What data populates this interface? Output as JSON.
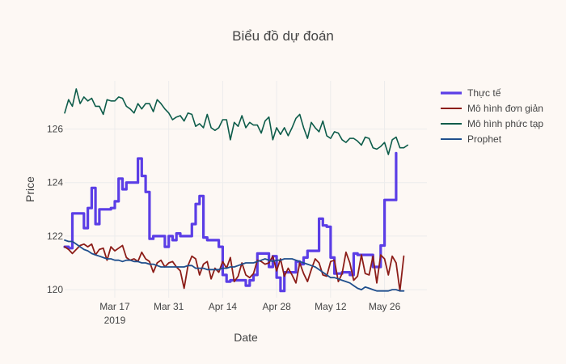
{
  "chart_data": {
    "type": "line",
    "title": "Biểu đồ dự đoán",
    "xlabel": "Date",
    "ylabel": "Price",
    "x_start": "2019-03-04",
    "x_end": "2019-06-06",
    "xlim": [
      "2019-03-04",
      "2019-06-06"
    ],
    "ylim": [
      119.7,
      127.8
    ],
    "grid": true,
    "legend_position": "right",
    "x_ticks": [
      {
        "date": "2019-03-17",
        "label": "Mar 17",
        "sublabel": "2019"
      },
      {
        "date": "2019-03-31",
        "label": "Mar 31",
        "sublabel": ""
      },
      {
        "date": "2019-04-14",
        "label": "Apr 14",
        "sublabel": ""
      },
      {
        "date": "2019-04-28",
        "label": "Apr 28",
        "sublabel": ""
      },
      {
        "date": "2019-05-12",
        "label": "May 12",
        "sublabel": ""
      },
      {
        "date": "2019-05-26",
        "label": "May 26",
        "sublabel": ""
      }
    ],
    "y_ticks": [
      120,
      122,
      124,
      126
    ],
    "series": [
      {
        "name": "Thực tế",
        "color": "#5b3ee6",
        "width": 3.2,
        "step": true,
        "values": [
          121.6,
          121.55,
          122.85,
          122.85,
          122.85,
          122.3,
          123.05,
          123.8,
          122.45,
          123,
          123,
          123,
          123.05,
          123.3,
          124.15,
          123.75,
          124,
          124,
          124,
          124.9,
          124.25,
          123.65,
          121.9,
          122,
          122,
          122,
          121.6,
          122,
          121.85,
          122.1,
          122,
          122,
          122,
          122.45,
          123.2,
          123.5,
          121.95,
          121.85,
          121.85,
          121.85,
          121.6,
          120.55,
          120.3,
          120.35,
          120.35,
          120.35,
          120.35,
          120.15,
          120.35,
          120.55,
          121.35,
          121.35,
          121.35,
          120.85,
          121.25,
          120.45,
          119.95,
          120.65,
          120.65,
          120.65,
          121.05,
          120.95,
          121.2,
          121.45,
          121.45,
          121.45,
          122.65,
          122.4,
          122.35,
          121.2,
          120.6,
          120.6,
          120.65,
          120.65,
          120.55,
          121.35,
          121.3,
          121.3,
          121.3,
          121.3,
          120.85,
          120.85,
          121.65,
          123.35,
          123.35,
          123.35,
          125.1
        ]
      },
      {
        "name": "Mô hình đơn giản",
        "color": "#8c1d18",
        "width": 1.8,
        "step": false,
        "values": [
          121.6,
          121.5,
          121.35,
          121.5,
          121.65,
          121.7,
          121.6,
          121.7,
          121.3,
          121.5,
          121.55,
          121.1,
          121.6,
          121.45,
          121.55,
          121.65,
          121.2,
          121.1,
          121.15,
          121.05,
          121.4,
          121.15,
          121.05,
          120.65,
          121,
          121.1,
          120.85,
          121,
          121.05,
          120.85,
          120.7,
          120.05,
          120.9,
          121.25,
          121.15,
          120.55,
          120.95,
          121.05,
          120.4,
          120.8,
          120.65,
          121.05,
          120.8,
          121.2,
          120.3,
          120.5,
          121,
          120.55,
          120.45,
          120.6,
          121.1,
          121.05,
          120.95,
          121,
          121.25,
          120.7,
          121.15,
          120.5,
          120.8,
          120.55,
          120.25,
          121,
          120.6,
          120.3,
          120.75,
          121.15,
          121,
          120.55,
          120.5,
          121.05,
          121.1,
          120.3,
          120.6,
          121.4,
          121,
          120.35,
          120.5,
          121.3,
          120.6,
          120.55,
          121.25,
          120.25,
          121.3,
          121.15,
          120.55,
          121.25,
          121,
          119.95,
          121.25
        ]
      },
      {
        "name": "Mô hình phức tạp",
        "color": "#0d5c4a",
        "width": 1.6,
        "step": false,
        "values": [
          126.6,
          127.1,
          126.85,
          127.5,
          126.95,
          127.2,
          127.05,
          127.15,
          126.85,
          126.85,
          126.55,
          127.1,
          127.05,
          127.05,
          127.2,
          127.15,
          126.85,
          126.75,
          126.6,
          126.95,
          126.75,
          126.95,
          126.95,
          126.65,
          127.1,
          126.95,
          126.75,
          126.6,
          126.35,
          126.45,
          126.5,
          126.3,
          126.6,
          126.55,
          126.1,
          126.2,
          126.05,
          126.55,
          126.05,
          125.95,
          126.05,
          126.35,
          126.35,
          125.6,
          126.25,
          126.1,
          126.5,
          126.05,
          126.25,
          126.15,
          126.15,
          125.85,
          126.3,
          126.45,
          125.6,
          126.05,
          125.8,
          126.05,
          125.75,
          126.05,
          126.4,
          126.55,
          126.05,
          125.65,
          126.25,
          126.05,
          125.9,
          126.3,
          125.75,
          125.65,
          125.9,
          125.85,
          125.6,
          125.5,
          125.65,
          125.65,
          125.55,
          125.4,
          125.7,
          125.65,
          125.3,
          125.25,
          125.35,
          125.5,
          125.05,
          125.6,
          125.7,
          125.3,
          125.3,
          125.4
        ]
      },
      {
        "name": "Prophet",
        "color": "#1f4e8c",
        "width": 1.8,
        "step": false,
        "values": [
          121.85,
          121.8,
          121.8,
          121.7,
          121.6,
          121.5,
          121.45,
          121.35,
          121.3,
          121.25,
          121.2,
          121.15,
          121.15,
          121.1,
          121.1,
          121.05,
          121.1,
          121.1,
          121.05,
          121.05,
          121,
          121,
          120.95,
          120.95,
          120.9,
          120.85,
          120.85,
          120.85,
          120.85,
          120.85,
          120.85,
          120.85,
          120.9,
          120.9,
          120.8,
          120.8,
          120.8,
          120.75,
          120.75,
          120.75,
          120.75,
          120.8,
          120.8,
          120.85,
          120.85,
          120.9,
          120.95,
          121,
          121,
          121,
          121.05,
          121.1,
          121.15,
          121.1,
          121.05,
          121.1,
          121.1,
          121.15,
          121.15,
          121.15,
          121.1,
          121.05,
          121,
          120.95,
          120.9,
          120.85,
          120.75,
          120.65,
          120.55,
          120.45,
          120.45,
          120.4,
          120.35,
          120.3,
          120.25,
          120.15,
          120.05,
          120,
          120.1,
          120.05,
          120,
          119.95,
          119.95,
          119.95,
          119.95,
          120,
          120,
          119.95,
          119.95
        ]
      }
    ]
  }
}
